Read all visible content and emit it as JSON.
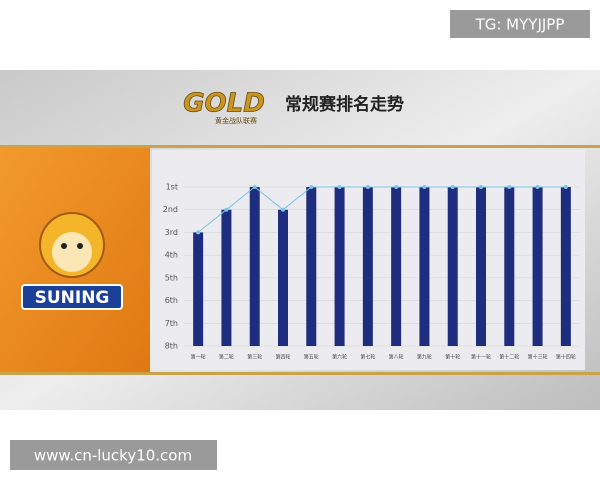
{
  "watermark": "TG: MYYJJPP",
  "site": "www.cn-lucky10.com",
  "logo": {
    "brand": "GOLD",
    "league": "黄金战队联赛"
  },
  "team": "SUNING",
  "chart_data": {
    "type": "bar",
    "title": "常规赛排名走势",
    "categories": [
      "第一轮",
      "第二轮",
      "第三轮",
      "第四轮",
      "第五轮",
      "第六轮",
      "第七轮",
      "第八轮",
      "第九轮",
      "第十轮",
      "第十一轮",
      "第十二轮",
      "第十三轮",
      "第十四轮"
    ],
    "values": [
      3,
      2,
      1,
      2,
      1,
      1,
      1,
      1,
      1,
      1,
      1,
      1,
      1,
      1
    ],
    "color": "#1f2d7e",
    "line_overlay": true,
    "line_color": "#7cc4e8",
    "ylim": [
      8,
      1
    ],
    "yticks": [
      {
        "value": 1,
        "label": "1st"
      },
      {
        "value": 2,
        "label": "2nd"
      },
      {
        "value": 3,
        "label": "3rd"
      },
      {
        "value": 4,
        "label": "4th"
      },
      {
        "value": 5,
        "label": "5th"
      },
      {
        "value": 6,
        "label": "6th"
      },
      {
        "value": 7,
        "label": "7th"
      },
      {
        "value": 8,
        "label": "8th"
      }
    ],
    "grid": true
  }
}
